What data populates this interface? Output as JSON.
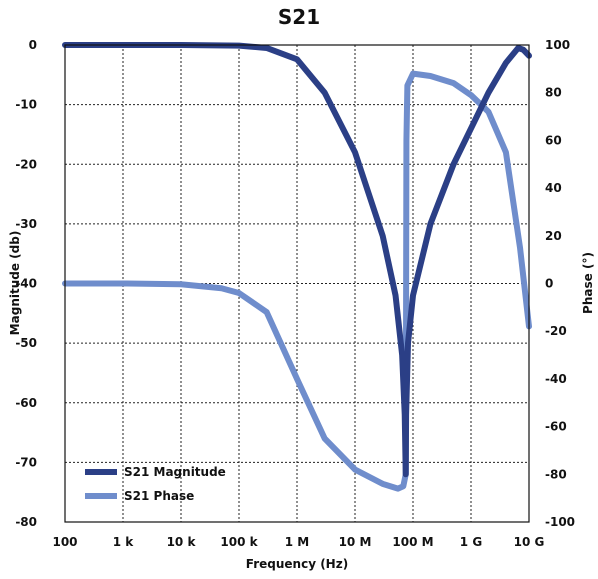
{
  "chart_data": {
    "type": "line",
    "title": "S21",
    "xlabel": "Frequency (Hz)",
    "ylabel": "Magnitude (db)",
    "y2label": "Phase (°)",
    "x_scale": "log",
    "xlim": [
      100,
      10000000000
    ],
    "ylim": [
      -80,
      0
    ],
    "y2lim": [
      -100,
      100
    ],
    "x_ticks": [
      {
        "value": 100,
        "label": "100"
      },
      {
        "value": 1000,
        "label": "1 k"
      },
      {
        "value": 10000,
        "label": "10 k"
      },
      {
        "value": 100000,
        "label": "100 k"
      },
      {
        "value": 1000000,
        "label": "1 M"
      },
      {
        "value": 10000000,
        "label": "10 M"
      },
      {
        "value": 100000000,
        "label": "100 M"
      },
      {
        "value": 1000000000,
        "label": "1 G"
      },
      {
        "value": 10000000000,
        "label": "10 G"
      }
    ],
    "y_ticks": [
      {
        "value": 0,
        "label": "0"
      },
      {
        "value": -10,
        "label": "-10"
      },
      {
        "value": -20,
        "label": "-20"
      },
      {
        "value": -30,
        "label": "-30"
      },
      {
        "value": -40,
        "label": "-40"
      },
      {
        "value": -50,
        "label": "-50"
      },
      {
        "value": -60,
        "label": "-60"
      },
      {
        "value": -70,
        "label": "-70"
      },
      {
        "value": -80,
        "label": "-80"
      }
    ],
    "y2_ticks": [
      {
        "value": 100,
        "label": "100"
      },
      {
        "value": 80,
        "label": "80"
      },
      {
        "value": 60,
        "label": "60"
      },
      {
        "value": 40,
        "label": "40"
      },
      {
        "value": 20,
        "label": "20"
      },
      {
        "value": 0,
        "label": "0"
      },
      {
        "value": -20,
        "label": "-20"
      },
      {
        "value": -40,
        "label": "-40"
      },
      {
        "value": -60,
        "label": "-60"
      },
      {
        "value": -80,
        "label": "-80"
      },
      {
        "value": -100,
        "label": "-100"
      }
    ],
    "grid": true,
    "legend_position": "bottom-left",
    "series": [
      {
        "name": "S21 Magnitude",
        "axis": "left",
        "color": "#2b3f86",
        "points": [
          [
            100,
            0
          ],
          [
            1000,
            0
          ],
          [
            10000,
            0
          ],
          [
            100000,
            -0.1
          ],
          [
            300000,
            -0.5
          ],
          [
            1000000,
            -2.4
          ],
          [
            3000000,
            -8
          ],
          [
            10000000,
            -18
          ],
          [
            30000000,
            -32
          ],
          [
            50000000,
            -42
          ],
          [
            65000000,
            -52
          ],
          [
            72000000,
            -62
          ],
          [
            75000000,
            -72
          ],
          [
            76000000,
            -62
          ],
          [
            82000000,
            -50
          ],
          [
            100000000,
            -42
          ],
          [
            200000000,
            -30
          ],
          [
            500000000,
            -20
          ],
          [
            1000000000,
            -14
          ],
          [
            2000000000,
            -8
          ],
          [
            4000000000,
            -3
          ],
          [
            6500000000,
            -0.5
          ],
          [
            8000000000,
            -0.8
          ],
          [
            10000000000,
            -1.8
          ]
        ]
      },
      {
        "name": "S21 Phase",
        "axis": "right",
        "color": "#6f8dcc",
        "points": [
          [
            100,
            0
          ],
          [
            1000,
            0
          ],
          [
            10000,
            -0.3
          ],
          [
            50000,
            -2
          ],
          [
            100000,
            -4
          ],
          [
            300000,
            -12
          ],
          [
            1000000,
            -40
          ],
          [
            3000000,
            -65
          ],
          [
            10000000,
            -78
          ],
          [
            30000000,
            -84
          ],
          [
            55000000,
            -86
          ],
          [
            68000000,
            -85
          ],
          [
            75000000,
            -80
          ],
          [
            77000000,
            60
          ],
          [
            80000000,
            83
          ],
          [
            100000000,
            88
          ],
          [
            200000000,
            87
          ],
          [
            500000000,
            84
          ],
          [
            1000000000,
            79
          ],
          [
            2000000000,
            72
          ],
          [
            4000000000,
            55
          ],
          [
            7000000000,
            15
          ],
          [
            10000000000,
            -18
          ]
        ]
      }
    ]
  }
}
